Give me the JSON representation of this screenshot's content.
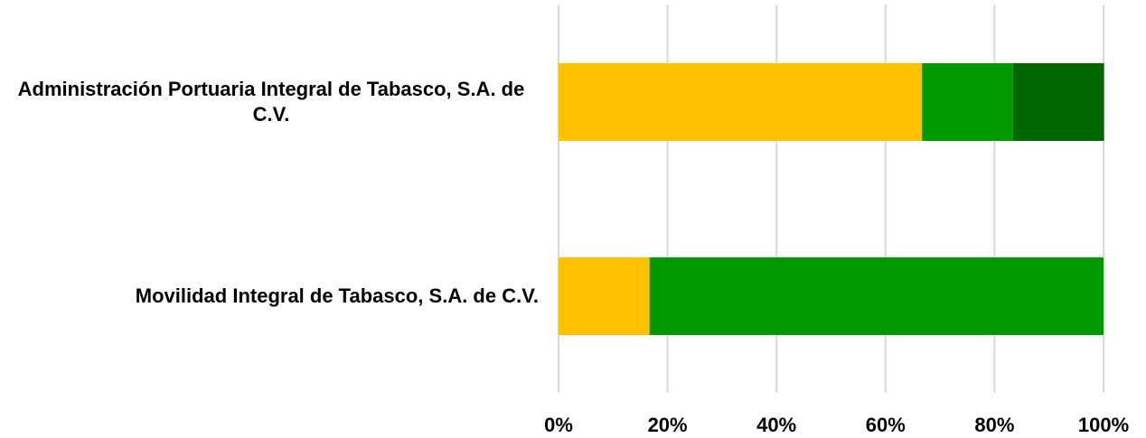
{
  "chart_data": {
    "type": "stacked_bar_horizontal",
    "categories": [
      "Administración Portuaria Integral de Tabasco, S.A. de C.V.",
      "Movilidad Integral de Tabasco, S.A. de C.V."
    ],
    "series": [
      {
        "color": "#ffc000",
        "values": [
          66.7,
          16.7
        ]
      },
      {
        "color": "#009900",
        "values": [
          16.7,
          83.3
        ]
      },
      {
        "color": "#006600",
        "values": [
          16.7,
          0
        ]
      }
    ],
    "xlim": [
      0,
      100
    ],
    "xticks": [
      {
        "value": 0,
        "label": "0%"
      },
      {
        "value": 20,
        "label": "20%"
      },
      {
        "value": 40,
        "label": "40%"
      },
      {
        "value": 60,
        "label": "60%"
      },
      {
        "value": 80,
        "label": "80%"
      },
      {
        "value": 100,
        "label": "100%"
      }
    ],
    "grid": true
  }
}
